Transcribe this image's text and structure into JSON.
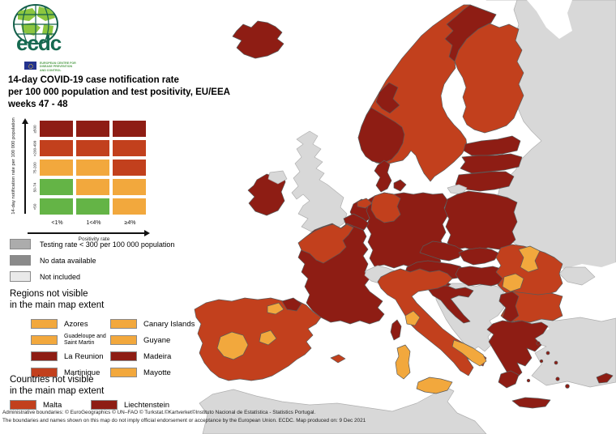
{
  "logo": {
    "wordmark": "ecdc",
    "tagline_line1": "EUROPEAN CENTRE FOR",
    "tagline_line2": "DISEASE PREVENTION",
    "tagline_line3": "AND CONTROL"
  },
  "title": {
    "line1": "14-day COVID-19 case notification rate",
    "line2": "per 100 000 population and test positivity, EU/EEA",
    "line3": "weeks 47 - 48"
  },
  "matrix": {
    "y_axis_label": "14-day notification rate per 100 000 population",
    "x_axis_label": "Positivity rate",
    "row_labels": [
      "≥500",
      ">200-499",
      "75-200",
      "50-74",
      "<50"
    ],
    "col_labels": [
      "<1%",
      "1<4%",
      "≥4%"
    ],
    "cells": [
      [
        "cat4",
        "cat4",
        "cat4"
      ],
      [
        "cat3",
        "cat3",
        "cat3"
      ],
      [
        "cat2",
        "cat2",
        "cat3"
      ],
      [
        "cat1",
        "cat2",
        "cat2"
      ],
      [
        "cat1",
        "cat1",
        "cat2"
      ]
    ]
  },
  "palette": {
    "cat1": "#64B446",
    "cat2": "#F2A83D",
    "cat3": "#C2401D",
    "cat4": "#8E1D14",
    "na": "#D8D8D8",
    "sea": "#FFFFFF",
    "gray_testing": "#ACACAC",
    "gray_nodata": "#8A8A8A",
    "gray_notincluded": "#E9E9E9"
  },
  "legend": [
    {
      "label": "Testing rate < 300 per 100 000 population",
      "color_key": "gray_testing"
    },
    {
      "label": "No data available",
      "color_key": "gray_nodata"
    },
    {
      "label": "Not included",
      "color_key": "gray_notincluded"
    }
  ],
  "regions_section": {
    "heading_line1": "Regions not visible",
    "heading_line2": "in the main map extent",
    "items": [
      {
        "label": "Azores",
        "color_key": "cat2"
      },
      {
        "label": "Canary Islands",
        "color_key": "cat2"
      },
      {
        "label": "Guadeloupe and Saint Martin",
        "color_key": "cat2"
      },
      {
        "label": "Guyane",
        "color_key": "cat2"
      },
      {
        "label": "La Reunion",
        "color_key": "cat4"
      },
      {
        "label": "Madeira",
        "color_key": "cat4"
      },
      {
        "label": "Martinique",
        "color_key": "cat3"
      },
      {
        "label": "Mayotte",
        "color_key": "cat2"
      }
    ]
  },
  "countries_section": {
    "heading_line1": "Countries not visible",
    "heading_line2": "in the main map extent",
    "items": [
      {
        "label": "Malta",
        "color_key": "cat3"
      },
      {
        "label": "Liechtenstein",
        "color_key": "cat4"
      }
    ]
  },
  "footer": {
    "line1": "Administrative boundaries: © EuroGeographics © UN–FAO © Turkstat.©Kartverket©Instituto Nacional de Estatística - Statistics Portugal.",
    "line2": "The boundaries and names shown on this map do not imply official endorsement or acceptance by the European Union. ECDC. Map produced on: 9 Dec 2021"
  },
  "map": {
    "border_gray": "#AFAFAF",
    "border_dark": "#5A5A5A",
    "regions": {
      "eastern-europe": "na",
      "white-sea": "sea",
      "black-sea": "sea",
      "marmara-sea": "sea",
      "crimea": "na",
      "north-africa": "na",
      "great-britain": "na",
      "northern-ireland": "na",
      "balkans": "na",
      "turkey": "na",
      "turkey-thrace": "na",
      "switzerland": "na",
      "kaliningrad": "na",
      "scandinavia": "cat3",
      "norway-north": "cat4",
      "norway-trondelag": "cat4",
      "norway-south": "cat4",
      "gotland": "cat3",
      "finland": "cat3",
      "estonia": "cat4",
      "latvia": "cat4",
      "lithuania": "cat4",
      "denmark": "cat4",
      "denmark-islands": "cat4",
      "germany": "cat4",
      "germany-north": "cat3",
      "netherlands": "cat4",
      "netherlands-north": "cat3",
      "belgium": "cat4",
      "poland": "cat4",
      "czechia": "cat4",
      "slovakia": "cat4",
      "austria": "cat4",
      "hungary": "cat4",
      "slovenia": "cat4",
      "croatia": "cat4",
      "france": "cat4",
      "france-northwest": "cat3",
      "corsica": "cat4",
      "iberia": "cat3",
      "extremadura": "cat2",
      "madrid": "cat2",
      "la-rioja": "cat2",
      "navarra": "cat4",
      "balearics": "cat3",
      "italy": "cat3",
      "italy-central": "cat2",
      "puglia": "cat2",
      "sicily": "cat2",
      "sardinia": "cat2",
      "romania": "cat3",
      "romania-northeast": "cat2",
      "romania-southwest": "cat2",
      "bulgaria": "cat3",
      "bulgaria-west": "cat4",
      "greece": "cat4",
      "peloponnese": "cat4",
      "crete": "cat4",
      "aegean-islands": "cat4",
      "cyprus": "cat4",
      "iceland": "cat4",
      "ireland": "cat4"
    }
  }
}
